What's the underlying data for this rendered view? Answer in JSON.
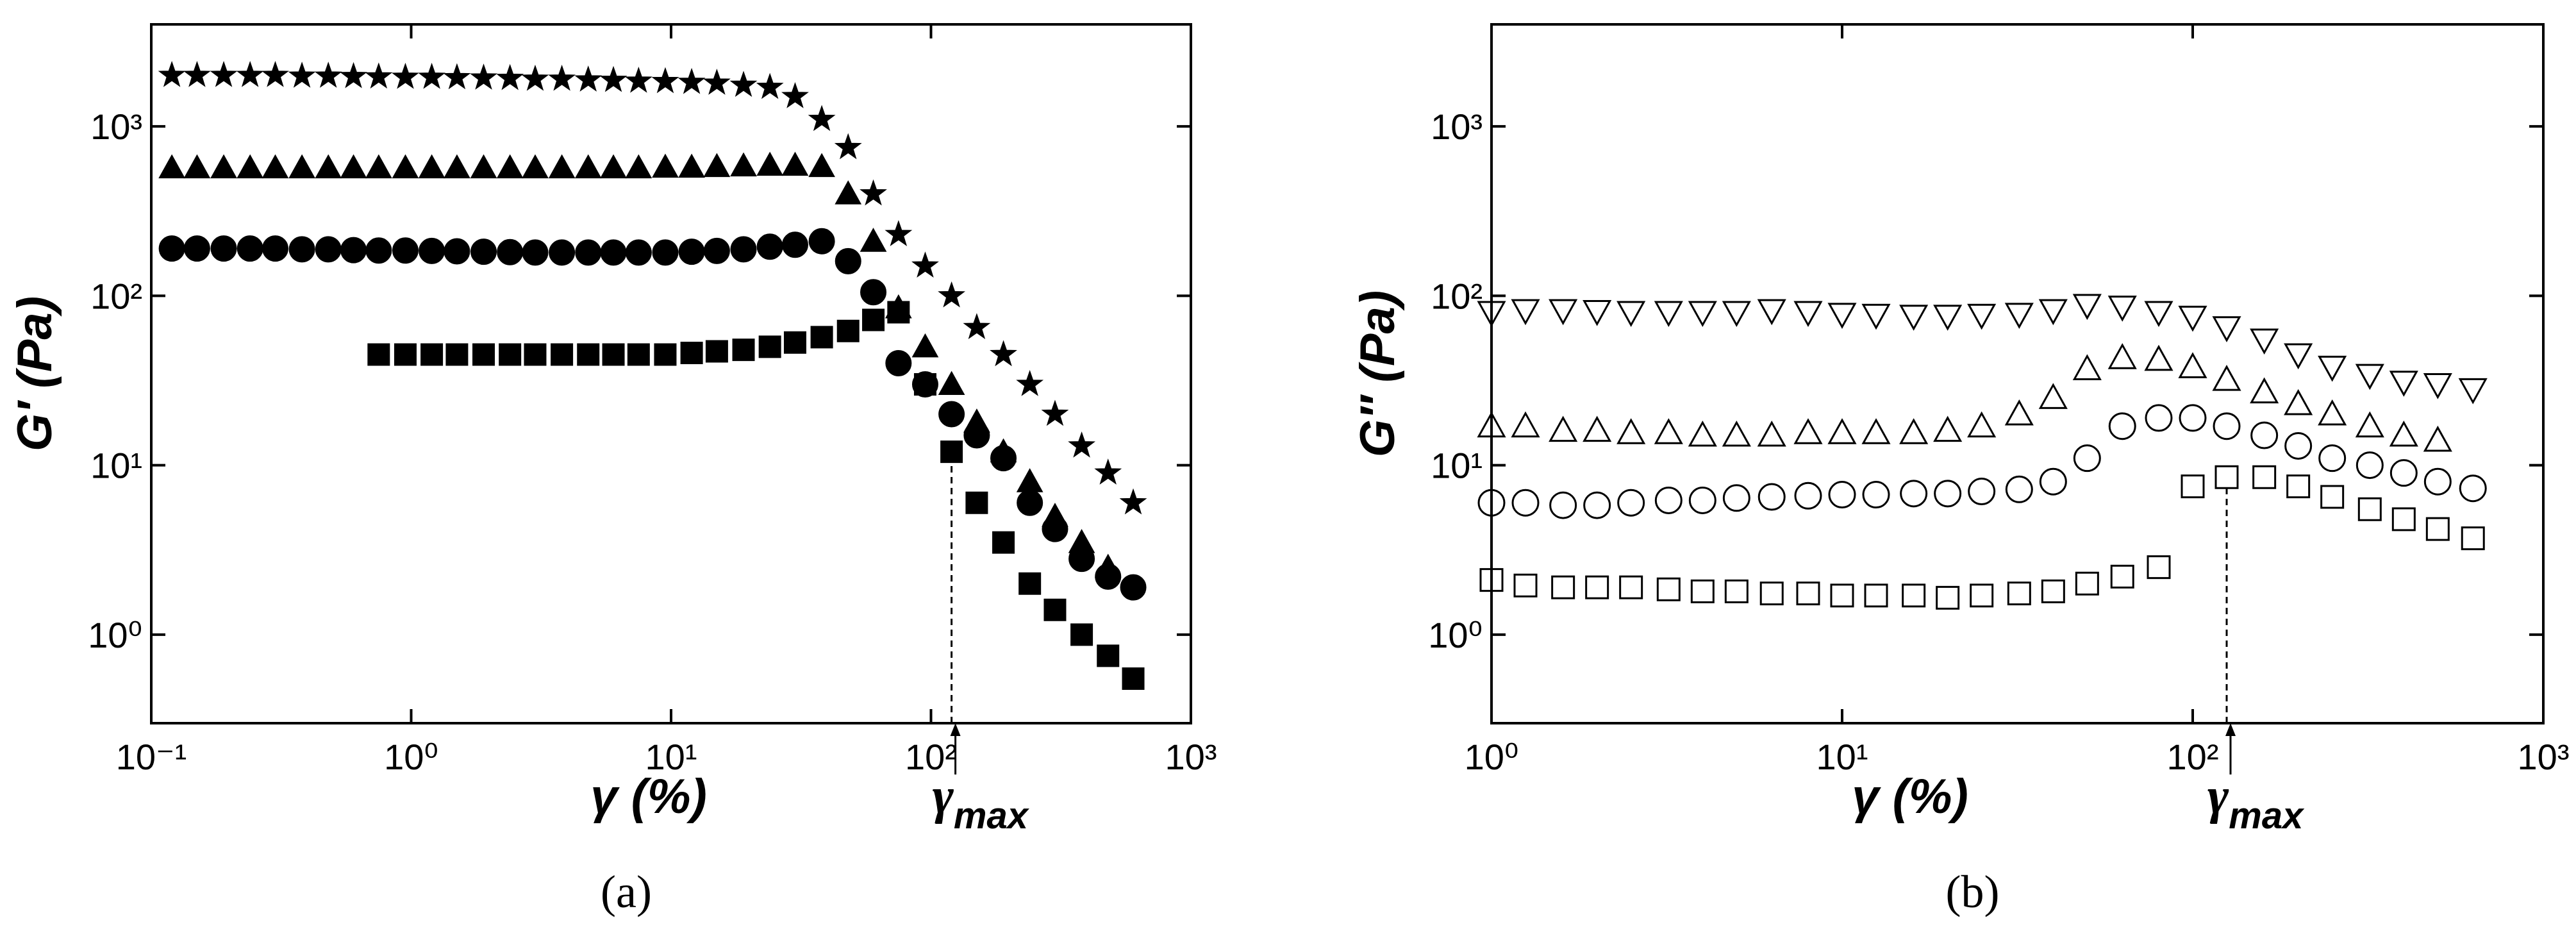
{
  "chart_data": [
    {
      "type": "scatter",
      "panel_label": "(a)",
      "xlabel": "γ (%)",
      "ylabel": "G′ (Pa)",
      "xlog": true,
      "ylog": true,
      "xlim": [
        0.1,
        1000
      ],
      "ylim": [
        0.3,
        4000
      ],
      "xticks": [
        {
          "value": 0.1,
          "label": "10⁻¹"
        },
        {
          "value": 1,
          "label": "10⁰"
        },
        {
          "value": 10,
          "label": "10¹"
        },
        {
          "value": 100,
          "label": "10²"
        },
        {
          "value": 1000,
          "label": "10³"
        }
      ],
      "yticks": [
        {
          "value": 1,
          "label": "10⁰"
        },
        {
          "value": 10,
          "label": "10¹"
        },
        {
          "value": 100,
          "label": "10²"
        },
        {
          "value": 1000,
          "label": "10³"
        }
      ],
      "annotation": {
        "text": "γ",
        "sub": "max",
        "x": 120,
        "y": 12
      },
      "series": [
        {
          "marker": "star",
          "filled": true,
          "color": "#000000",
          "x": [
            0.12,
            0.15,
            0.19,
            0.24,
            0.3,
            0.38,
            0.48,
            0.6,
            0.75,
            0.95,
            1.2,
            1.5,
            1.9,
            2.4,
            3,
            3.8,
            4.8,
            6,
            7.5,
            9.5,
            12,
            15,
            19,
            24,
            30,
            38,
            48,
            60,
            75,
            95,
            120,
            150,
            190,
            240,
            300,
            380,
            480,
            600
          ],
          "values": [
            2000,
            2000,
            2000,
            2000,
            2000,
            1980,
            1980,
            1970,
            1960,
            1950,
            1950,
            1940,
            1930,
            1920,
            1900,
            1900,
            1880,
            1870,
            1850,
            1840,
            1820,
            1800,
            1750,
            1700,
            1500,
            1100,
            750,
            400,
            230,
            150,
            100,
            65,
            45,
            30,
            20,
            13,
            9,
            6
          ]
        },
        {
          "marker": "triangle",
          "filled": true,
          "color": "#000000",
          "x": [
            0.12,
            0.15,
            0.19,
            0.24,
            0.3,
            0.38,
            0.48,
            0.6,
            0.75,
            0.95,
            1.2,
            1.5,
            1.9,
            2.4,
            3,
            3.8,
            4.8,
            6,
            7.5,
            9.5,
            12,
            15,
            19,
            24,
            30,
            38,
            48,
            60,
            75,
            95,
            120,
            150,
            190,
            240,
            300,
            380,
            480
          ],
          "values": [
            570,
            570,
            570,
            570,
            570,
            570,
            570,
            570,
            570,
            570,
            570,
            570,
            570,
            570,
            570,
            570,
            570,
            570,
            570,
            575,
            575,
            580,
            585,
            590,
            590,
            580,
            400,
            210,
            85,
            50,
            30,
            18,
            12,
            8,
            5,
            3.5,
            2.5
          ]
        },
        {
          "marker": "circle",
          "filled": true,
          "color": "#000000",
          "x": [
            0.12,
            0.15,
            0.19,
            0.24,
            0.3,
            0.38,
            0.48,
            0.6,
            0.75,
            0.95,
            1.2,
            1.5,
            1.9,
            2.4,
            3,
            3.8,
            4.8,
            6,
            7.5,
            9.5,
            12,
            15,
            19,
            24,
            30,
            38,
            48,
            60,
            75,
            95,
            120,
            150,
            190,
            240,
            300,
            380,
            480,
            600
          ],
          "values": [
            190,
            190,
            190,
            190,
            190,
            188,
            188,
            186,
            185,
            185,
            184,
            183,
            182,
            181,
            180,
            180,
            180,
            180,
            180,
            180,
            182,
            184,
            188,
            195,
            200,
            210,
            160,
            105,
            40,
            30,
            20,
            15,
            11,
            6,
            4.2,
            2.8,
            2.2,
            1.9
          ]
        },
        {
          "marker": "square",
          "filled": true,
          "color": "#000000",
          "x": [
            0.75,
            0.95,
            1.2,
            1.5,
            1.9,
            2.4,
            3,
            3.8,
            4.8,
            6,
            7.5,
            9.5,
            12,
            15,
            19,
            24,
            30,
            38,
            48,
            60,
            75,
            95,
            120,
            150,
            190,
            240,
            300,
            380,
            480,
            600
          ],
          "values": [
            45,
            45,
            45,
            45,
            45,
            45,
            45,
            45,
            45,
            45,
            45,
            45,
            46,
            47,
            48,
            50,
            53,
            57,
            62,
            72,
            80,
            30,
            12,
            6,
            3.5,
            2,
            1.4,
            1,
            0.75,
            0.55
          ]
        }
      ]
    },
    {
      "type": "scatter",
      "panel_label": "(b)",
      "xlabel": "γ (%)",
      "ylabel": "G″ (Pa)",
      "xlog": true,
      "ylog": true,
      "xlim": [
        1,
        1000
      ],
      "ylim": [
        0.3,
        4000
      ],
      "xticks": [
        {
          "value": 1,
          "label": "10⁰"
        },
        {
          "value": 10,
          "label": "10¹"
        },
        {
          "value": 100,
          "label": "10²"
        },
        {
          "value": 1000,
          "label": "10³"
        }
      ],
      "yticks": [
        {
          "value": 1,
          "label": "10⁰"
        },
        {
          "value": 10,
          "label": "10¹"
        },
        {
          "value": 100,
          "label": "10²"
        },
        {
          "value": 1000,
          "label": "10³"
        }
      ],
      "annotation": {
        "text": "γ",
        "sub": "max",
        "x": 125,
        "y": 9
      },
      "series": [
        {
          "marker": "triangle-down",
          "filled": false,
          "color": "#000000",
          "x": [
            1,
            1.25,
            1.6,
            2,
            2.5,
            3.2,
            4,
            5,
            6.3,
            8,
            10,
            12.5,
            16,
            20,
            25,
            32,
            40,
            50,
            63,
            80,
            100,
            125,
            160,
            200,
            250,
            320,
            400,
            500,
            630
          ],
          "values": [
            80,
            82,
            82,
            81,
            80,
            80,
            80,
            80,
            82,
            80,
            78,
            77,
            76,
            76,
            77,
            78,
            82,
            88,
            86,
            80,
            75,
            65,
            55,
            45,
            38,
            34,
            31,
            30,
            28
          ]
        },
        {
          "marker": "triangle",
          "filled": false,
          "color": "#000000",
          "x": [
            1,
            1.25,
            1.6,
            2,
            2.5,
            3.2,
            4,
            5,
            6.3,
            8,
            10,
            12.5,
            16,
            20,
            25,
            32,
            40,
            50,
            63,
            80,
            100,
            125,
            160,
            200,
            250,
            320,
            400,
            500
          ],
          "values": [
            17,
            17,
            16,
            16,
            15.5,
            15.5,
            15,
            15,
            15,
            15.5,
            15.5,
            15.5,
            15.5,
            16,
            17,
            20,
            25,
            37,
            43,
            42,
            38,
            32,
            27,
            23,
            20,
            17,
            15,
            14
          ]
        },
        {
          "marker": "circle",
          "filled": false,
          "color": "#000000",
          "x": [
            1,
            1.25,
            1.6,
            2,
            2.5,
            3.2,
            4,
            5,
            6.3,
            8,
            10,
            12.5,
            16,
            20,
            25,
            32,
            40,
            50,
            63,
            80,
            100,
            125,
            160,
            200,
            250,
            320,
            400,
            500,
            630
          ],
          "values": [
            6,
            6,
            5.8,
            5.8,
            6,
            6.2,
            6.2,
            6.4,
            6.5,
            6.6,
            6.7,
            6.7,
            6.8,
            6.8,
            7,
            7.2,
            8,
            11,
            17,
            19,
            19,
            17,
            15,
            13,
            11,
            10,
            9,
            8,
            7.3
          ]
        },
        {
          "marker": "square",
          "filled": false,
          "color": "#000000",
          "x": [
            1,
            1.25,
            1.6,
            2,
            2.5,
            3.2,
            4,
            5,
            6.3,
            8,
            10,
            12.5,
            16,
            20,
            25,
            32,
            40,
            50,
            63,
            80,
            100,
            125,
            160,
            200,
            250,
            320,
            400,
            500,
            630
          ],
          "values": [
            2.1,
            1.95,
            1.9,
            1.9,
            1.9,
            1.85,
            1.8,
            1.8,
            1.75,
            1.75,
            1.7,
            1.7,
            1.7,
            1.65,
            1.7,
            1.75,
            1.8,
            2,
            2.2,
            2.5,
            7.5,
            8.5,
            8.5,
            7.5,
            6.5,
            5.5,
            4.8,
            4.2,
            3.7
          ]
        }
      ]
    }
  ]
}
